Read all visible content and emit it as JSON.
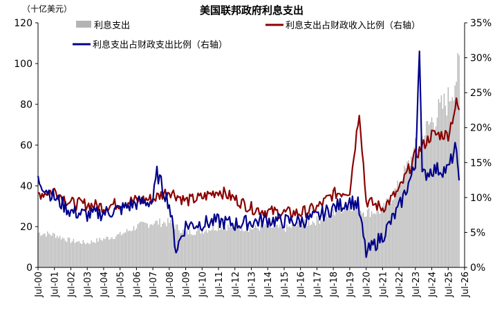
{
  "chart_data": {
    "type": "bar+line",
    "title": "美国联邦政府利息支出",
    "left_unit": "（十亿美元）",
    "left_axis": {
      "ylim": [
        0,
        120
      ],
      "ticks": [
        0,
        20,
        40,
        60,
        80,
        100,
        120
      ],
      "tick_labels": [
        "0",
        "20",
        "40",
        "60",
        "80",
        "100",
        "120"
      ]
    },
    "right_axis": {
      "ylim": [
        0,
        35
      ],
      "ticks": [
        0,
        5,
        10,
        15,
        20,
        25,
        30,
        35
      ],
      "tick_labels": [
        "0%",
        "5%",
        "10%",
        "15%",
        "20%",
        "25%",
        "30%",
        "35%"
      ]
    },
    "x_axis": {
      "start": "2000-07",
      "end": "2026-07",
      "tick_labels": [
        "Jul-00",
        "Jul-01",
        "Jul-02",
        "Jul-03",
        "Jul-04",
        "Jul-05",
        "Jul-06",
        "Jul-07",
        "Jul-08",
        "Jul-09",
        "Jul-10",
        "Jul-11",
        "Jul-12",
        "Jul-13",
        "Jul-14",
        "Jul-15",
        "Jul-16",
        "Jul-17",
        "Jul-18",
        "Jul-19",
        "Jul-20",
        "Jul-21",
        "Jul-22",
        "Jul-23",
        "Jul-24",
        "Jul-25",
        "Jul-26"
      ]
    },
    "legend": {
      "placement": "top"
    },
    "series": [
      {
        "name": "利息支出",
        "kind": "bar",
        "axis": "left",
        "color": "#b4b4b4",
        "unit": "十亿美元",
        "monthly_anchor_points": [
          [
            "2000-07",
            17
          ],
          [
            "2001-07",
            16
          ],
          [
            "2002-07",
            13
          ],
          [
            "2003-07",
            12
          ],
          [
            "2004-07",
            14
          ],
          [
            "2005-07",
            16
          ],
          [
            "2006-07",
            20
          ],
          [
            "2007-07",
            22
          ],
          [
            "2008-07",
            22
          ],
          [
            "2009-07",
            17
          ],
          [
            "2010-07",
            18
          ],
          [
            "2011-07",
            20
          ],
          [
            "2012-07",
            20
          ],
          [
            "2013-07",
            19
          ],
          [
            "2014-07",
            20
          ],
          [
            "2015-07",
            19
          ],
          [
            "2016-07",
            21
          ],
          [
            "2017-07",
            23
          ],
          [
            "2018-07",
            27
          ],
          [
            "2019-07",
            31
          ],
          [
            "2020-07",
            27
          ],
          [
            "2021-07",
            28
          ],
          [
            "2022-07",
            40
          ],
          [
            "2023-07",
            58
          ],
          [
            "2024-07",
            72
          ],
          [
            "2025-07",
            82
          ],
          [
            "2026-03",
            98
          ]
        ]
      },
      {
        "name": "利息支出占财政收入比例（右轴）",
        "kind": "line",
        "axis": "right",
        "color": "#8b0000",
        "unit": "%",
        "monthly_anchor_points": [
          [
            "2000-07",
            10.5
          ],
          [
            "2001-07",
            11
          ],
          [
            "2002-07",
            9.2
          ],
          [
            "2003-07",
            9.0
          ],
          [
            "2004-07",
            8.7
          ],
          [
            "2005-07",
            9.2
          ],
          [
            "2006-07",
            9.6
          ],
          [
            "2007-07",
            9.8
          ],
          [
            "2008-07",
            11
          ],
          [
            "2009-07",
            9.5
          ],
          [
            "2010-07",
            10
          ],
          [
            "2011-07",
            11
          ],
          [
            "2012-07",
            9.8
          ],
          [
            "2013-07",
            8.5
          ],
          [
            "2014-07",
            8.0
          ],
          [
            "2015-07",
            7.8
          ],
          [
            "2016-07",
            7.8
          ],
          [
            "2017-07",
            8.5
          ],
          [
            "2018-07",
            10.5
          ],
          [
            "2019-07",
            11
          ],
          [
            "2020-02",
            22.5
          ],
          [
            "2020-07",
            9.5
          ],
          [
            "2021-07",
            8.5
          ],
          [
            "2022-07",
            11
          ],
          [
            "2023-07",
            16
          ],
          [
            "2024-07",
            19
          ],
          [
            "2025-07",
            19
          ],
          [
            "2026-01",
            23.5
          ],
          [
            "2026-03",
            22.5
          ]
        ]
      },
      {
        "name": "利息支出占财政支出比例（右轴）",
        "kind": "line",
        "axis": "right",
        "color": "#00008b",
        "unit": "%",
        "monthly_anchor_points": [
          [
            "2000-07",
            12.5
          ],
          [
            "2001-07",
            10
          ],
          [
            "2002-07",
            8
          ],
          [
            "2003-07",
            7.5
          ],
          [
            "2004-07",
            7.8
          ],
          [
            "2005-07",
            8.3
          ],
          [
            "2006-07",
            9.2
          ],
          [
            "2007-07",
            9.5
          ],
          [
            "2007-10",
            13.5
          ],
          [
            "2008-07",
            9
          ],
          [
            "2008-12",
            2.5
          ],
          [
            "2009-07",
            6
          ],
          [
            "2010-07",
            6.3
          ],
          [
            "2011-07",
            6.6
          ],
          [
            "2012-07",
            6.2
          ],
          [
            "2013-07",
            6.5
          ],
          [
            "2014-07",
            6.8
          ],
          [
            "2015-07",
            6.6
          ],
          [
            "2016-07",
            6.6
          ],
          [
            "2017-07",
            7.2
          ],
          [
            "2018-07",
            8.5
          ],
          [
            "2019-07",
            9.5
          ],
          [
            "2020-01",
            9
          ],
          [
            "2020-07",
            2
          ],
          [
            "2021-07",
            4.5
          ],
          [
            "2022-07",
            8.5
          ],
          [
            "2023-07",
            14.5
          ],
          [
            "2023-10",
            32
          ],
          [
            "2023-12",
            13
          ],
          [
            "2024-07",
            14
          ],
          [
            "2025-07",
            14
          ],
          [
            "2025-12",
            17
          ],
          [
            "2026-03",
            13.5
          ]
        ]
      }
    ]
  }
}
